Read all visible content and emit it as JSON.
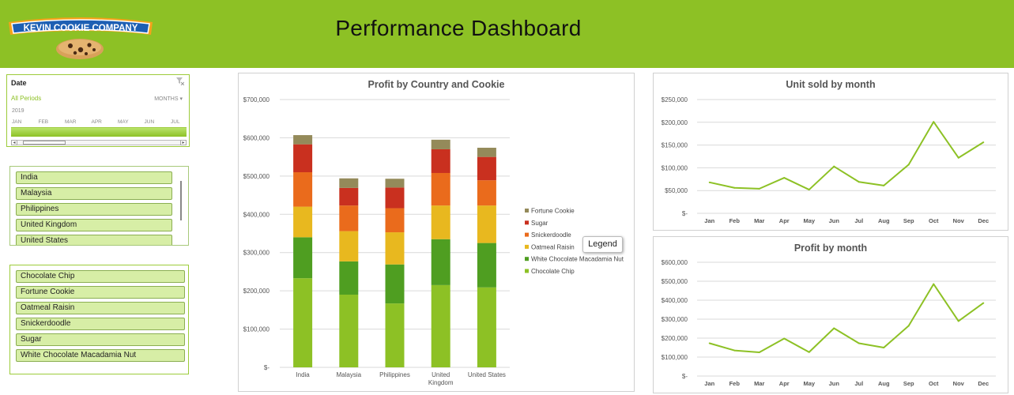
{
  "header": {
    "logo_text": "KEVIN COOKIE COMPANY",
    "title": "Performance Dashboard"
  },
  "timeline": {
    "title": "Date",
    "periods_label": "All Periods",
    "level_label": "MONTHS",
    "year": "2019",
    "months": [
      "JAN",
      "FEB",
      "MAR",
      "APR",
      "MAY",
      "JUN",
      "JUL"
    ]
  },
  "country_slicer": {
    "items": [
      "India",
      "Malaysia",
      "Philippines",
      "United Kingdom",
      "United States"
    ]
  },
  "cookie_slicer": {
    "items": [
      "Chocolate Chip",
      "Fortune Cookie",
      "Oatmeal Raisin",
      "Snickerdoodle",
      "Sugar",
      "White Chocolate Macadamia Nut"
    ]
  },
  "legend_tooltip": "Legend",
  "colors": {
    "header_green": "#8dc125",
    "line_green": "#8dc125",
    "Chocolate Chip": "#8dc125",
    "White Chocolate Macadamia Nut": "#4f9e21",
    "Oatmeal Raisin": "#e8b81f",
    "Snickerdoodle": "#ea6b1c",
    "Sugar": "#c9301f",
    "Fortune Cookie": "#948a5a"
  },
  "chart_data": [
    {
      "type": "bar",
      "stacked": true,
      "title": "Profit by Country and Cookie",
      "categories": [
        "India",
        "Malaysia",
        "Philippines",
        "United Kingdom",
        "United States"
      ],
      "series": [
        {
          "name": "Chocolate Chip",
          "values": [
            233000,
            190000,
            167000,
            215000,
            209000
          ]
        },
        {
          "name": "White Chocolate Macadamia Nut",
          "values": [
            107000,
            87000,
            102000,
            120000,
            116000
          ]
        },
        {
          "name": "Oatmeal Raisin",
          "values": [
            80000,
            79000,
            84000,
            88000,
            98000
          ]
        },
        {
          "name": "Snickerdoodle",
          "values": [
            90000,
            67000,
            63000,
            85000,
            66000
          ]
        },
        {
          "name": "Sugar",
          "values": [
            73000,
            46000,
            54000,
            62000,
            61000
          ]
        },
        {
          "name": "Fortune Cookie",
          "values": [
            24000,
            25000,
            23000,
            25000,
            24000
          ]
        }
      ],
      "ylim": [
        0,
        700000
      ],
      "yticks": [
        "$-",
        "$100,000",
        "$200,000",
        "$300,000",
        "$400,000",
        "$500,000",
        "$600,000",
        "$700,000"
      ],
      "legend_position": "right",
      "grid": true
    },
    {
      "type": "line",
      "title": "Unit sold by month",
      "categories": [
        "Jan",
        "Feb",
        "Mar",
        "Apr",
        "May",
        "Jun",
        "Jul",
        "Aug",
        "Sep",
        "Oct",
        "Nov",
        "Dec"
      ],
      "values": [
        68000,
        56000,
        54000,
        78000,
        52000,
        103000,
        69000,
        61000,
        107000,
        201000,
        122000,
        156000
      ],
      "ylim": [
        0,
        250000
      ],
      "yticks": [
        "$-",
        "$50,000",
        "$100,000",
        "$150,000",
        "$200,000",
        "$250,000"
      ],
      "grid": true
    },
    {
      "type": "line",
      "title": "Profit by month",
      "categories": [
        "Jan",
        "Feb",
        "Mar",
        "Apr",
        "May",
        "Jun",
        "Jul",
        "Aug",
        "Sep",
        "Oct",
        "Nov",
        "Dec"
      ],
      "values": [
        173000,
        135000,
        125000,
        198000,
        126000,
        252000,
        173000,
        150000,
        265000,
        485000,
        290000,
        385000
      ],
      "ylim": [
        0,
        600000
      ],
      "yticks": [
        "$-",
        "$100,000",
        "$200,000",
        "$300,000",
        "$400,000",
        "$500,000",
        "$600,000"
      ],
      "grid": true
    }
  ]
}
